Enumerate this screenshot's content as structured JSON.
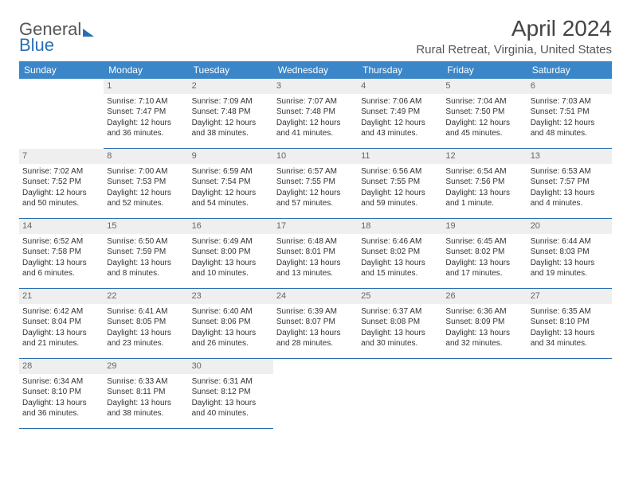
{
  "brand": {
    "word1": "General",
    "word2": "Blue"
  },
  "title": "April 2024",
  "location": "Rural Retreat, Virginia, United States",
  "colors": {
    "header_bg": "#3a86c8",
    "header_text": "#ffffff",
    "rule": "#2a6fb5",
    "daynum_bg": "#efefef",
    "text": "#333333"
  },
  "dayNames": [
    "Sunday",
    "Monday",
    "Tuesday",
    "Wednesday",
    "Thursday",
    "Friday",
    "Saturday"
  ],
  "weeks": [
    [
      null,
      {
        "n": "1",
        "sr": "Sunrise: 7:10 AM",
        "ss": "Sunset: 7:47 PM",
        "d1": "Daylight: 12 hours",
        "d2": "and 36 minutes."
      },
      {
        "n": "2",
        "sr": "Sunrise: 7:09 AM",
        "ss": "Sunset: 7:48 PM",
        "d1": "Daylight: 12 hours",
        "d2": "and 38 minutes."
      },
      {
        "n": "3",
        "sr": "Sunrise: 7:07 AM",
        "ss": "Sunset: 7:48 PM",
        "d1": "Daylight: 12 hours",
        "d2": "and 41 minutes."
      },
      {
        "n": "4",
        "sr": "Sunrise: 7:06 AM",
        "ss": "Sunset: 7:49 PM",
        "d1": "Daylight: 12 hours",
        "d2": "and 43 minutes."
      },
      {
        "n": "5",
        "sr": "Sunrise: 7:04 AM",
        "ss": "Sunset: 7:50 PM",
        "d1": "Daylight: 12 hours",
        "d2": "and 45 minutes."
      },
      {
        "n": "6",
        "sr": "Sunrise: 7:03 AM",
        "ss": "Sunset: 7:51 PM",
        "d1": "Daylight: 12 hours",
        "d2": "and 48 minutes."
      }
    ],
    [
      {
        "n": "7",
        "sr": "Sunrise: 7:02 AM",
        "ss": "Sunset: 7:52 PM",
        "d1": "Daylight: 12 hours",
        "d2": "and 50 minutes."
      },
      {
        "n": "8",
        "sr": "Sunrise: 7:00 AM",
        "ss": "Sunset: 7:53 PM",
        "d1": "Daylight: 12 hours",
        "d2": "and 52 minutes."
      },
      {
        "n": "9",
        "sr": "Sunrise: 6:59 AM",
        "ss": "Sunset: 7:54 PM",
        "d1": "Daylight: 12 hours",
        "d2": "and 54 minutes."
      },
      {
        "n": "10",
        "sr": "Sunrise: 6:57 AM",
        "ss": "Sunset: 7:55 PM",
        "d1": "Daylight: 12 hours",
        "d2": "and 57 minutes."
      },
      {
        "n": "11",
        "sr": "Sunrise: 6:56 AM",
        "ss": "Sunset: 7:55 PM",
        "d1": "Daylight: 12 hours",
        "d2": "and 59 minutes."
      },
      {
        "n": "12",
        "sr": "Sunrise: 6:54 AM",
        "ss": "Sunset: 7:56 PM",
        "d1": "Daylight: 13 hours",
        "d2": "and 1 minute."
      },
      {
        "n": "13",
        "sr": "Sunrise: 6:53 AM",
        "ss": "Sunset: 7:57 PM",
        "d1": "Daylight: 13 hours",
        "d2": "and 4 minutes."
      }
    ],
    [
      {
        "n": "14",
        "sr": "Sunrise: 6:52 AM",
        "ss": "Sunset: 7:58 PM",
        "d1": "Daylight: 13 hours",
        "d2": "and 6 minutes."
      },
      {
        "n": "15",
        "sr": "Sunrise: 6:50 AM",
        "ss": "Sunset: 7:59 PM",
        "d1": "Daylight: 13 hours",
        "d2": "and 8 minutes."
      },
      {
        "n": "16",
        "sr": "Sunrise: 6:49 AM",
        "ss": "Sunset: 8:00 PM",
        "d1": "Daylight: 13 hours",
        "d2": "and 10 minutes."
      },
      {
        "n": "17",
        "sr": "Sunrise: 6:48 AM",
        "ss": "Sunset: 8:01 PM",
        "d1": "Daylight: 13 hours",
        "d2": "and 13 minutes."
      },
      {
        "n": "18",
        "sr": "Sunrise: 6:46 AM",
        "ss": "Sunset: 8:02 PM",
        "d1": "Daylight: 13 hours",
        "d2": "and 15 minutes."
      },
      {
        "n": "19",
        "sr": "Sunrise: 6:45 AM",
        "ss": "Sunset: 8:02 PM",
        "d1": "Daylight: 13 hours",
        "d2": "and 17 minutes."
      },
      {
        "n": "20",
        "sr": "Sunrise: 6:44 AM",
        "ss": "Sunset: 8:03 PM",
        "d1": "Daylight: 13 hours",
        "d2": "and 19 minutes."
      }
    ],
    [
      {
        "n": "21",
        "sr": "Sunrise: 6:42 AM",
        "ss": "Sunset: 8:04 PM",
        "d1": "Daylight: 13 hours",
        "d2": "and 21 minutes."
      },
      {
        "n": "22",
        "sr": "Sunrise: 6:41 AM",
        "ss": "Sunset: 8:05 PM",
        "d1": "Daylight: 13 hours",
        "d2": "and 23 minutes."
      },
      {
        "n": "23",
        "sr": "Sunrise: 6:40 AM",
        "ss": "Sunset: 8:06 PM",
        "d1": "Daylight: 13 hours",
        "d2": "and 26 minutes."
      },
      {
        "n": "24",
        "sr": "Sunrise: 6:39 AM",
        "ss": "Sunset: 8:07 PM",
        "d1": "Daylight: 13 hours",
        "d2": "and 28 minutes."
      },
      {
        "n": "25",
        "sr": "Sunrise: 6:37 AM",
        "ss": "Sunset: 8:08 PM",
        "d1": "Daylight: 13 hours",
        "d2": "and 30 minutes."
      },
      {
        "n": "26",
        "sr": "Sunrise: 6:36 AM",
        "ss": "Sunset: 8:09 PM",
        "d1": "Daylight: 13 hours",
        "d2": "and 32 minutes."
      },
      {
        "n": "27",
        "sr": "Sunrise: 6:35 AM",
        "ss": "Sunset: 8:10 PM",
        "d1": "Daylight: 13 hours",
        "d2": "and 34 minutes."
      }
    ],
    [
      {
        "n": "28",
        "sr": "Sunrise: 6:34 AM",
        "ss": "Sunset: 8:10 PM",
        "d1": "Daylight: 13 hours",
        "d2": "and 36 minutes."
      },
      {
        "n": "29",
        "sr": "Sunrise: 6:33 AM",
        "ss": "Sunset: 8:11 PM",
        "d1": "Daylight: 13 hours",
        "d2": "and 38 minutes."
      },
      {
        "n": "30",
        "sr": "Sunrise: 6:31 AM",
        "ss": "Sunset: 8:12 PM",
        "d1": "Daylight: 13 hours",
        "d2": "and 40 minutes."
      },
      null,
      null,
      null,
      null
    ]
  ]
}
